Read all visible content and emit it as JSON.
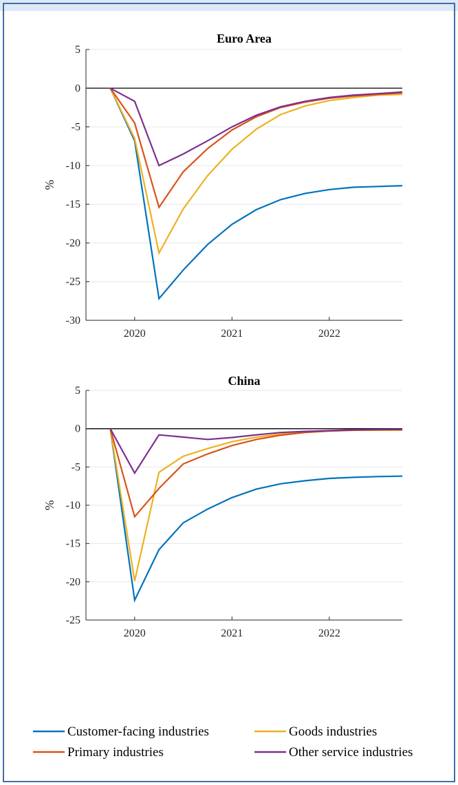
{
  "colors": {
    "header_band": "#dde9f6",
    "frame_border": "#3d6ea8",
    "grid": "#e6e6e6",
    "axis": "#262626",
    "zero_line": "#000000"
  },
  "chart_data": [
    {
      "type": "line",
      "title": "Euro Area",
      "ylabel": "%",
      "xlabel": "",
      "ylim": [
        -30,
        5
      ],
      "yticks": [
        5,
        0,
        -5,
        -10,
        -15,
        -20,
        -25,
        -30
      ],
      "xlim": [
        2019.5,
        2022.75
      ],
      "xticks": [
        2020,
        2021,
        2022
      ],
      "grid": "horizontal",
      "x": [
        2019.75,
        2020.0,
        2020.25,
        2020.5,
        2020.75,
        2021.0,
        2021.25,
        2021.5,
        2021.75,
        2022.0,
        2022.25,
        2022.5,
        2022.75
      ],
      "series": [
        {
          "name": "Customer-facing industries",
          "color": "#0072bd",
          "values": [
            0,
            -6.8,
            -27.2,
            -23.5,
            -20.2,
            -17.6,
            -15.7,
            -14.4,
            -13.6,
            -13.1,
            -12.8,
            -12.7,
            -12.6
          ]
        },
        {
          "name": "Goods industries",
          "color": "#edb120",
          "values": [
            0,
            -6.5,
            -21.3,
            -15.6,
            -11.3,
            -7.9,
            -5.3,
            -3.4,
            -2.3,
            -1.6,
            -1.2,
            -0.9,
            -0.8
          ]
        },
        {
          "name": "Primary industries",
          "color": "#d95319",
          "values": [
            0,
            -4.5,
            -15.4,
            -10.8,
            -7.8,
            -5.4,
            -3.7,
            -2.5,
            -1.8,
            -1.3,
            -1.0,
            -0.8,
            -0.6
          ]
        },
        {
          "name": "Other service industries",
          "color": "#7e2f8e",
          "values": [
            0,
            -1.7,
            -10.0,
            -8.5,
            -6.8,
            -5.0,
            -3.5,
            -2.4,
            -1.7,
            -1.2,
            -0.9,
            -0.7,
            -0.5
          ]
        }
      ]
    },
    {
      "type": "line",
      "title": "China",
      "ylabel": "%",
      "xlabel": "",
      "ylim": [
        -25,
        5
      ],
      "yticks": [
        5,
        0,
        -5,
        -10,
        -15,
        -20,
        -25
      ],
      "xlim": [
        2019.5,
        2022.75
      ],
      "xticks": [
        2020,
        2021,
        2022
      ],
      "grid": "horizontal",
      "x": [
        2019.75,
        2020.0,
        2020.25,
        2020.5,
        2020.75,
        2021.0,
        2021.25,
        2021.5,
        2021.75,
        2022.0,
        2022.25,
        2022.5,
        2022.75
      ],
      "series": [
        {
          "name": "Customer-facing industries",
          "color": "#0072bd",
          "values": [
            0,
            -22.4,
            -15.8,
            -12.3,
            -10.5,
            -9.0,
            -7.9,
            -7.2,
            -6.8,
            -6.5,
            -6.35,
            -6.25,
            -6.2
          ]
        },
        {
          "name": "Goods industries",
          "color": "#edb120",
          "values": [
            0,
            -19.9,
            -5.7,
            -3.6,
            -2.6,
            -1.7,
            -1.1,
            -0.7,
            -0.45,
            -0.3,
            -0.2,
            -0.2,
            -0.2
          ]
        },
        {
          "name": "Primary industries",
          "color": "#d95319",
          "values": [
            0,
            -11.5,
            -7.8,
            -4.6,
            -3.3,
            -2.2,
            -1.4,
            -0.85,
            -0.5,
            -0.3,
            -0.2,
            -0.15,
            -0.1
          ]
        },
        {
          "name": "Other service industries",
          "color": "#7e2f8e",
          "values": [
            0,
            -5.8,
            -0.8,
            -1.1,
            -1.4,
            -1.15,
            -0.8,
            -0.5,
            -0.35,
            -0.25,
            -0.15,
            -0.1,
            -0.1
          ]
        }
      ]
    }
  ],
  "legend": {
    "placement": "bottom",
    "items": [
      {
        "label": "Customer-facing industries",
        "color": "#0072bd"
      },
      {
        "label": "Goods industries",
        "color": "#edb120"
      },
      {
        "label": "Primary industries",
        "color": "#d95319"
      },
      {
        "label": "Other service industries",
        "color": "#7e2f8e"
      }
    ]
  }
}
